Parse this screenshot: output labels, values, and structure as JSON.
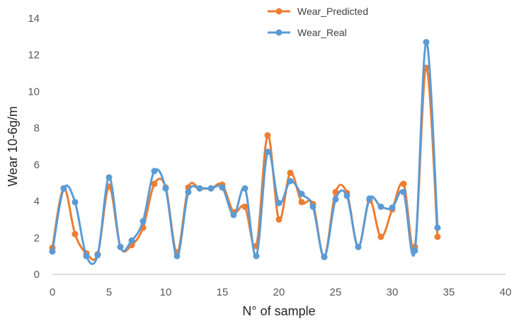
{
  "chart_data": {
    "type": "scatter",
    "title": "",
    "xlabel": "N° of sample",
    "ylabel": "Wear 10-6g/m",
    "xlim": [
      0,
      40
    ],
    "ylim": [
      0,
      14
    ],
    "x_ticks": [
      "0",
      "5",
      "10",
      "15",
      "20",
      "25",
      "30",
      "35",
      "40"
    ],
    "y_ticks": [
      "0",
      "2",
      "4",
      "6",
      "8",
      "10",
      "12",
      "14"
    ],
    "grid": false,
    "legend_position": "top-right",
    "smoothed_lines": true,
    "series": [
      {
        "name": "Wear_Predicted",
        "color": "#ED7D31",
        "x": [
          0,
          1,
          2,
          3,
          4,
          5,
          6,
          7,
          8,
          9,
          10,
          11,
          12,
          13,
          14,
          15,
          16,
          17,
          18,
          19,
          20,
          21,
          22,
          23,
          24,
          25,
          26,
          27,
          28,
          29,
          30,
          31,
          32,
          33,
          34
        ],
        "y": [
          1.45,
          4.7,
          2.2,
          1.15,
          1.1,
          4.8,
          1.5,
          1.6,
          2.55,
          4.95,
          4.75,
          1.2,
          4.75,
          4.7,
          4.7,
          4.9,
          3.4,
          3.7,
          1.55,
          7.6,
          3.0,
          5.55,
          3.95,
          3.85,
          0.95,
          4.5,
          4.45,
          1.5,
          4.05,
          2.05,
          3.55,
          4.95,
          1.5,
          11.3,
          2.05
        ]
      },
      {
        "name": "Wear_Real",
        "color": "#5B9BD5",
        "x": [
          0,
          1,
          2,
          3,
          4,
          5,
          6,
          7,
          8,
          9,
          10,
          11,
          12,
          13,
          14,
          15,
          16,
          17,
          18,
          19,
          20,
          21,
          22,
          23,
          24,
          25,
          26,
          27,
          28,
          29,
          30,
          31,
          32,
          33,
          34
        ],
        "y": [
          1.25,
          4.7,
          3.95,
          1.0,
          1.05,
          5.3,
          1.5,
          1.85,
          2.9,
          5.65,
          4.7,
          1.0,
          4.5,
          4.7,
          4.7,
          4.75,
          3.25,
          4.7,
          1.0,
          6.7,
          3.9,
          5.1,
          4.4,
          3.7,
          0.95,
          4.1,
          4.3,
          1.5,
          4.15,
          3.7,
          3.65,
          4.5,
          1.3,
          12.7,
          2.55
        ]
      }
    ]
  }
}
